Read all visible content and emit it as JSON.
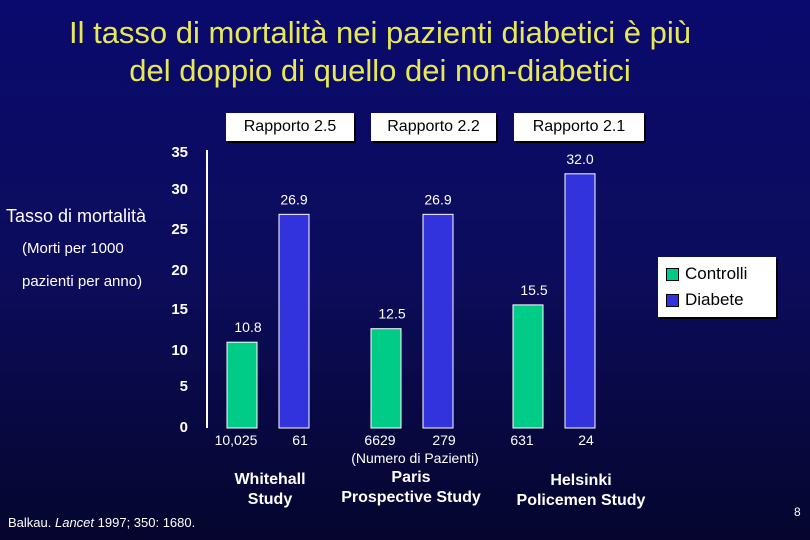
{
  "slide": {
    "title_line1": "Il tasso di mortalità nei pazienti diabetici è più",
    "title_line2": "del doppio di quello dei non-diabetici",
    "ylabel": "Tasso di mortalità",
    "ylabel_sub1": "(Morti per 1000",
    "ylabel_sub2": "pazienti per anno)",
    "ratios": [
      "Rapporto 2.5",
      "Rapporto 2.2",
      "Rapporto 2.1"
    ],
    "group_names": [
      [
        "Whitehall",
        "Study"
      ],
      [
        "Paris",
        "Prospective Study"
      ],
      [
        "Helsinki",
        "Policemen Study"
      ]
    ],
    "numero_note": "(Numero di Pazienti)",
    "citation_author": "Balkau. ",
    "citation_journal": "Lancet",
    "citation_rest": " 1997; 350: 1680.",
    "page_number": "8"
  },
  "colors": {
    "title": "#e8e855",
    "controlli": "#00cc88",
    "diabete": "#3333dd",
    "background": "#0a0a6e"
  },
  "chart_data": {
    "type": "bar",
    "ylabel": "Tasso di mortalità",
    "ylim": [
      0,
      35
    ],
    "yticks": [
      "35",
      "30",
      "25",
      "20",
      "15",
      "10",
      "5",
      "0"
    ],
    "legend_placement": "right",
    "categories": [
      "Whitehall Study",
      "Paris Prospective Study",
      "Helsinki Policemen Study"
    ],
    "series": [
      {
        "name": "Controlli",
        "values": [
          10.8,
          12.5,
          15.5
        ],
        "labels": [
          "10.8",
          "12.5",
          "15.5"
        ],
        "n": [
          "10,025",
          "6629",
          "631"
        ]
      },
      {
        "name": "Diabete",
        "values": [
          26.9,
          26.9,
          32.0
        ],
        "labels": [
          "26.9",
          "26.9",
          "32.0"
        ],
        "n": [
          "61",
          "279",
          "24"
        ]
      }
    ]
  }
}
